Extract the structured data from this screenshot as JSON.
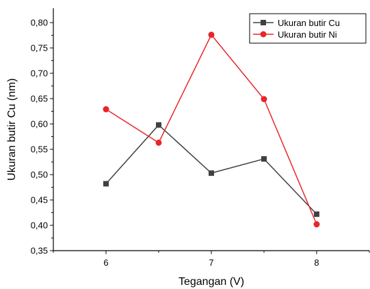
{
  "chart_data": {
    "type": "line",
    "xlabel": "Tegangan (V)",
    "ylabel": "Ukuran butir Cu (nm)",
    "xlim": [
      5.5,
      8.5
    ],
    "ylim": [
      0.35,
      0.82
    ],
    "x_ticks": [
      "6",
      "7",
      "8"
    ],
    "x_tick_values": [
      6,
      7,
      8
    ],
    "y_ticks": [
      "0,35",
      "0,40",
      "0,45",
      "0,50",
      "0,55",
      "0,60",
      "0,65",
      "0,70",
      "0,75",
      "0,80"
    ],
    "y_tick_values": [
      0.35,
      0.4,
      0.45,
      0.5,
      0.55,
      0.6,
      0.65,
      0.7,
      0.75,
      0.8
    ],
    "grid": false,
    "legend_position": "top-right",
    "x": [
      6,
      6.5,
      7,
      7.5,
      8
    ],
    "series": [
      {
        "name": "Ukuran butir Cu",
        "values": [
          0.482,
          0.598,
          0.503,
          0.531,
          0.422
        ],
        "color": "#404040",
        "marker": "square"
      },
      {
        "name": "Ukuran butir Ni",
        "values": [
          0.629,
          0.563,
          0.776,
          0.649,
          0.402
        ],
        "color": "#e8262a",
        "marker": "circle"
      }
    ]
  }
}
